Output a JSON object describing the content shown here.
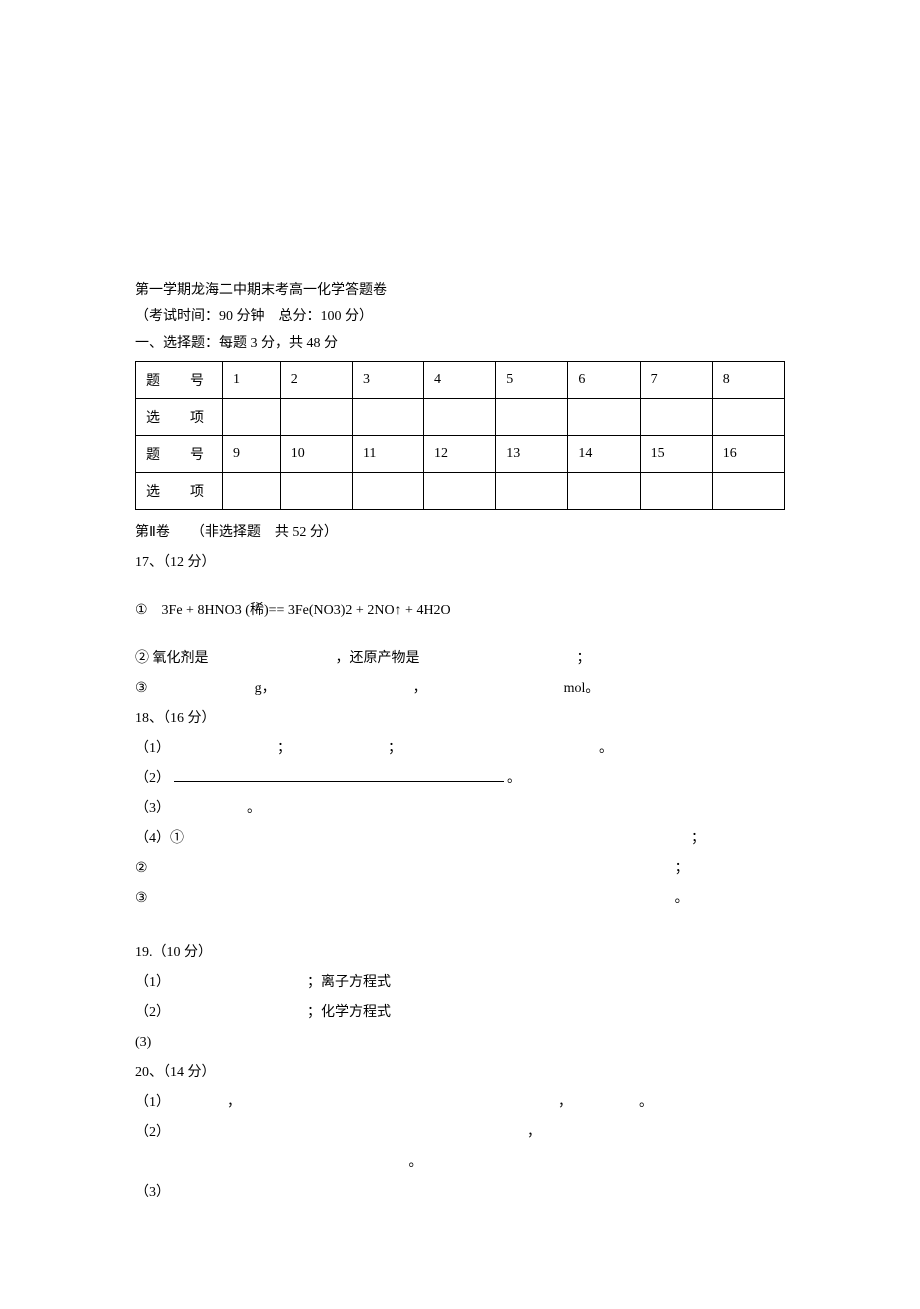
{
  "header": {
    "title": "第一学期龙海二中期末考高一化学答题卷",
    "exam_info": "（考试时间：90 分钟　总分：100 分）",
    "section1_title": "一、选择题：每题 3 分，共 48 分"
  },
  "table": {
    "row_labels": {
      "question": "题　号",
      "answer": "选　项"
    },
    "row1_numbers": [
      "1",
      "2",
      "3",
      "4",
      "5",
      "6",
      "7",
      "8"
    ],
    "row2_numbers": [
      "9",
      "10",
      "11",
      "12",
      "13",
      "14",
      "15",
      "16"
    ]
  },
  "section2": {
    "header": "第Ⅱ卷　　（非选择题　共 52 分）"
  },
  "q17": {
    "title": "17、（12 分）",
    "item1": "①　3Fe + 8HNO3 (稀)== 3Fe(NO3)2 + 2NO↑ + 4H2O",
    "item2_pre": "② 氧化剂是",
    "item2_mid": "，还原产物是",
    "item2_end": "；",
    "item3_pre": "③",
    "item3_g": "g，",
    "item3_comma": "，",
    "item3_mol": "mol。",
    "gap_a": 120,
    "gap_b": 150,
    "gap_c": 100,
    "gap_d": 130,
    "gap_e": 130
  },
  "q18": {
    "title": "18、（16 分）",
    "line1_pre": "（1）",
    "line1_s1": "；",
    "line1_s2": "；",
    "line1_end": "。",
    "line2_pre": "（2）",
    "line2_end": "。",
    "line3_pre": "（3）",
    "line3_end": "。",
    "line4_pre": "（4）①",
    "line4_end": "；",
    "line5_pre": "②",
    "line5_end": "；",
    "line6_pre": "③",
    "line6_end": "。",
    "gap_1a": 100,
    "gap_1b": 90,
    "gap_1c": 190,
    "gap_3": 70,
    "gap_4": 500,
    "gap_5": 520,
    "gap_6": 520
  },
  "q19": {
    "title": "19.（10 分）",
    "line1_pre": "（1）",
    "line1_mid": "；离子方程式",
    "line2_pre": "（2）",
    "line2_mid": "；化学方程式",
    "line3_pre": " (3)",
    "gap_1": 130,
    "gap_2": 130
  },
  "q20": {
    "title": "20、（14 分）",
    "line1_pre": "（1）",
    "line1_c1": "，",
    "line1_c2": "，",
    "line1_end": "。",
    "line2_pre": "（2）",
    "line2_c1": "，",
    "line2_end": "。",
    "line3_pre": "（3）",
    "gap_1a": 50,
    "gap_1b": 310,
    "gap_1c": 60,
    "gap_2a": 350,
    "gap_2b": 270
  },
  "colors": {
    "text": "#000000",
    "background": "#ffffff",
    "border": "#000000"
  }
}
